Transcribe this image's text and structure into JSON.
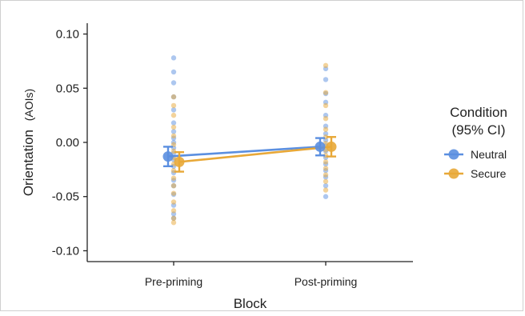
{
  "chart_data": {
    "type": "scatter",
    "title": "",
    "xlabel": "Block",
    "ylabel_main": "Orientation",
    "ylabel_unit": "(AOIs)",
    "categories": [
      "Pre-priming",
      "Post-priming"
    ],
    "ylim": [
      -0.11,
      0.11
    ],
    "yticks": [
      0.1,
      0.05,
      0.0,
      -0.05,
      -0.1
    ],
    "ytick_labels": [
      "0.10",
      "0.05",
      "0.00",
      "-0.05",
      "-0.10"
    ],
    "grid": false,
    "legend": {
      "title_line1": "Condition",
      "title_line2": "(95% CI)",
      "placement": "right",
      "entries": [
        "Neutral",
        "Secure"
      ]
    },
    "series": [
      {
        "name": "Neutral",
        "color": "#5b8fe0",
        "means": [
          -0.013,
          -0.004
        ],
        "ci_low": [
          -0.022,
          -0.012
        ],
        "ci_high": [
          -0.004,
          0.004
        ],
        "points": [
          [
            0.078,
            0.065,
            0.055,
            0.042,
            0.03,
            0.018,
            0.01,
            0.004,
            0.0,
            -0.005,
            -0.01,
            -0.016,
            -0.022,
            -0.028,
            -0.035,
            -0.04,
            -0.048,
            -0.058,
            -0.066,
            -0.07
          ],
          [
            0.068,
            0.058,
            0.045,
            0.037,
            0.025,
            0.015,
            0.008,
            0.002,
            -0.003,
            -0.008,
            -0.014,
            -0.02,
            -0.026,
            -0.032,
            -0.04,
            -0.05
          ]
        ]
      },
      {
        "name": "Secure",
        "color": "#e8a838",
        "means": [
          -0.018,
          -0.004
        ],
        "ci_low": [
          -0.027,
          -0.013
        ],
        "ci_high": [
          -0.009,
          0.005
        ],
        "points": [
          [
            0.042,
            0.034,
            0.025,
            0.014,
            0.006,
            -0.002,
            -0.008,
            -0.014,
            -0.02,
            -0.026,
            -0.033,
            -0.04,
            -0.047,
            -0.055,
            -0.063,
            -0.07,
            -0.074
          ],
          [
            0.071,
            0.046,
            0.034,
            0.022,
            0.012,
            0.005,
            -0.001,
            -0.007,
            -0.012,
            -0.018,
            -0.024,
            -0.03,
            -0.036,
            -0.044
          ]
        ]
      }
    ]
  }
}
